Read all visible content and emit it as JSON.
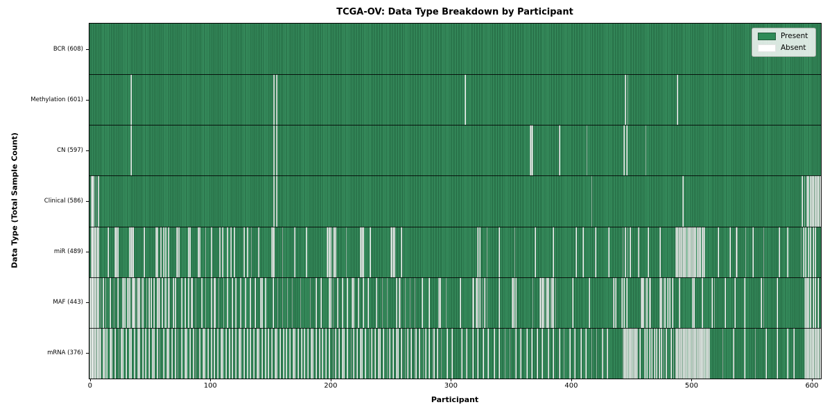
{
  "chart_data": {
    "type": "heatmap",
    "title": "TCGA-OV: Data Type Breakdown by Participant",
    "xlabel": "Participant",
    "ylabel": "Data Type (Total Sample Count)",
    "n_participants": 608,
    "x_ticks": [
      0,
      100,
      200,
      300,
      400,
      500,
      600
    ],
    "x_tick_labels": [
      "0",
      "100",
      "200",
      "300",
      "400",
      "500",
      "600"
    ],
    "grid": false,
    "legend": {
      "position": "upper right",
      "entries": [
        {
          "label": "Present",
          "color": "#2e8b57"
        },
        {
          "label": "Absent",
          "color": "#ffffff"
        }
      ]
    },
    "colors": {
      "present": "#2e8b57",
      "absent": "#ffffff",
      "row_separator": "#000000"
    },
    "rows": [
      {
        "name": "BCR",
        "label": "BCR (608)",
        "present_count": 608,
        "absent": []
      },
      {
        "name": "Methylation",
        "label": "Methylation (601)",
        "present_count": 601,
        "absent": [
          34,
          153,
          155,
          312,
          445,
          447,
          488
        ]
      },
      {
        "name": "CN",
        "label": "CN (597)",
        "present_count": 597,
        "absent": [
          34,
          153,
          155,
          [
            366,
            368
          ],
          390,
          413,
          444,
          446,
          462
        ]
      },
      {
        "name": "Clinical",
        "label": "Clinical (586)",
        "present_count": 586,
        "absent": [
          [
            1,
            3
          ],
          5,
          7,
          153,
          155,
          417,
          493,
          592,
          594,
          [
            596,
            597
          ],
          [
            599,
            607
          ]
        ]
      },
      {
        "name": "miR",
        "label": "miR (489)",
        "present_count": 489,
        "absent": [
          [
            1,
            7
          ],
          15,
          [
            21,
            23
          ],
          [
            33,
            36
          ],
          45,
          55,
          56,
          59,
          61,
          63,
          65,
          [
            72,
            74
          ],
          82,
          83,
          90,
          91,
          96,
          101,
          108,
          110,
          114,
          117,
          120,
          128,
          131,
          134,
          140,
          [
            151,
            153
          ],
          160,
          170,
          180,
          [
            197,
            200
          ],
          [
            202,
            204
          ],
          213,
          [
            225,
            227
          ],
          233,
          [
            250,
            253
          ],
          259,
          322,
          324,
          330,
          340,
          353,
          370,
          385,
          404,
          410,
          420,
          431,
          443,
          445,
          447,
          449,
          456,
          464,
          474,
          [
            487,
            495
          ],
          [
            497,
            503
          ],
          [
            505,
            507
          ],
          [
            509,
            511
          ],
          522,
          532,
          537,
          538,
          545,
          551,
          560,
          573,
          580,
          591,
          593,
          595,
          597,
          599,
          601,
          603
        ]
      },
      {
        "name": "MAF",
        "label": "MAF (443)",
        "present_count": 443,
        "absent": [
          [
            0,
            7
          ],
          9,
          11,
          13,
          17,
          20,
          23,
          [
            27,
            29
          ],
          [
            31,
            33
          ],
          [
            35,
            37
          ],
          [
            39,
            41
          ],
          43,
          44,
          47,
          49,
          51,
          53,
          [
            56,
            58
          ],
          60,
          62,
          63,
          65,
          66,
          69,
          71,
          76,
          79,
          82,
          84,
          85,
          88,
          93,
          96,
          101,
          103,
          104,
          107,
          111,
          114,
          118,
          121,
          125,
          129,
          133,
          137,
          142,
          143,
          146,
          152,
          156,
          160,
          164,
          168,
          175,
          183,
          188,
          192,
          199,
          200,
          202,
          206,
          210,
          214,
          218,
          219,
          223,
          227,
          231,
          238,
          243,
          247,
          255,
          257,
          258,
          262,
          266,
          270,
          276,
          282,
          290,
          291,
          296,
          308,
          318,
          319,
          321,
          322,
          324,
          326,
          328,
          330,
          340,
          351,
          352,
          354,
          368,
          [
            374,
            377
          ],
          379,
          380,
          381,
          383,
          384,
          385,
          387,
          401,
          415,
          435,
          437,
          442,
          444,
          446,
          [
            458,
            460
          ],
          462,
          463,
          465,
          466,
          [
            474,
            475
          ],
          477,
          478,
          480,
          482,
          484,
          490,
          501,
          502,
          509,
          517,
          519,
          528,
          536,
          544,
          558,
          560,
          571,
          [
            594,
            597
          ],
          599,
          601,
          603,
          605
        ]
      },
      {
        "name": "mRNA",
        "label": "mRNA (376)",
        "present_count": 376,
        "absent": [
          [
            0,
            9
          ],
          11,
          12,
          14,
          17,
          18,
          21,
          24,
          26,
          27,
          30,
          33,
          34,
          37,
          40,
          41,
          44,
          46,
          49,
          52,
          53,
          56,
          58,
          61,
          64,
          65,
          68,
          71,
          73,
          76,
          79,
          80,
          83,
          86,
          88,
          91,
          94,
          95,
          98,
          101,
          103,
          106,
          109,
          110,
          113,
          116,
          118,
          121,
          124,
          125,
          128,
          131,
          133,
          136,
          139,
          140,
          143,
          146,
          148,
          151,
          154,
          155,
          158,
          161,
          163,
          166,
          169,
          170,
          173,
          176,
          178,
          181,
          184,
          185,
          188,
          191,
          193,
          196,
          199,
          202,
          204,
          207,
          210,
          211,
          214,
          217,
          219,
          222,
          225,
          226,
          229,
          232,
          234,
          237,
          240,
          241,
          244,
          247,
          249,
          252,
          255,
          256,
          259,
          262,
          264,
          267,
          270,
          271,
          274,
          277,
          279,
          282,
          285,
          286,
          289,
          292,
          297,
          301,
          309,
          313,
          318,
          322,
          327,
          331,
          336,
          340,
          345,
          349,
          354,
          358,
          363,
          367,
          372,
          376,
          381,
          385,
          390,
          394,
          399,
          403,
          408,
          412,
          417,
          421,
          426,
          430,
          [
            443,
            455
          ],
          457,
          461,
          463,
          465,
          467,
          469,
          471,
          473,
          475,
          477,
          479,
          483,
          485,
          [
            487,
            515
          ],
          526,
          535,
          544,
          553,
          562,
          571,
          580,
          585,
          [
            594,
            607
          ]
        ]
      }
    ]
  }
}
